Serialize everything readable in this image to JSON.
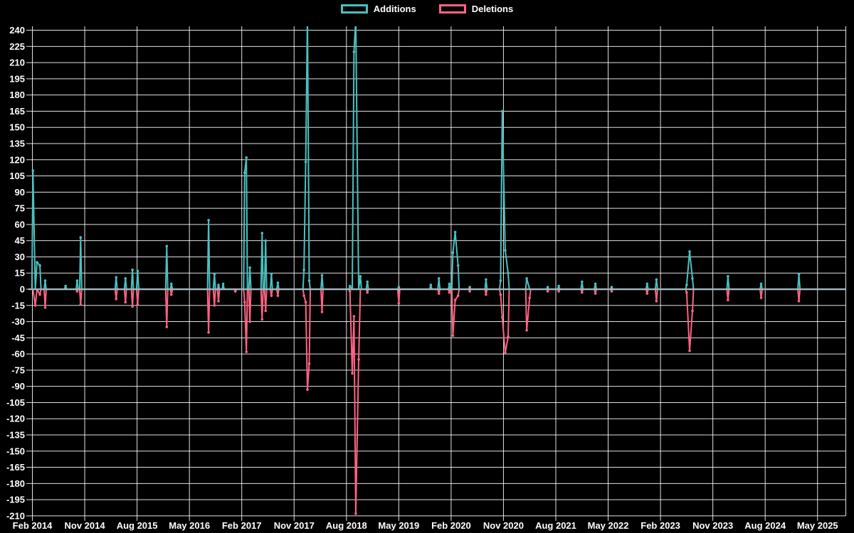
{
  "chart_data": {
    "type": "line",
    "title": "",
    "background": "#000000",
    "grid": true,
    "gridline_color": "#ffffff",
    "zero_line_color": "#9DB9C2",
    "legend_position": "top",
    "series": [
      {
        "name": "Additions",
        "color": "#4BC0C0",
        "key": "a"
      },
      {
        "name": "Deletions",
        "color": "#FF6384",
        "key": "d"
      }
    ],
    "x_axis": {
      "start_month": "2014-02",
      "tick_interval_months": 9,
      "tick_labels": [
        "Feb 2014",
        "Nov 2014",
        "Aug 2015",
        "May 2016",
        "Feb 2017",
        "Nov 2017",
        "Aug 2018",
        "May 2019",
        "Feb 2020",
        "Nov 2020",
        "Aug 2021",
        "May 2022",
        "Feb 2023",
        "Nov 2023",
        "Aug 2024",
        "May 2025"
      ]
    },
    "y_axis": {
      "min": -210,
      "max": 240,
      "step": 15,
      "tick_labels": [
        240,
        225,
        210,
        195,
        180,
        165,
        150,
        135,
        120,
        105,
        90,
        75,
        60,
        45,
        30,
        15,
        0,
        -15,
        -30,
        -45,
        -60,
        -75,
        -90,
        -105,
        -120,
        -135,
        -150,
        -165,
        -180,
        -195,
        -210
      ]
    },
    "points_note": "t = months since Feb 2014; a = additions (clipped at chart top for tallest spikes); d = deletions",
    "points": [
      {
        "t": 0.1,
        "a": 110,
        "d": 0
      },
      {
        "t": 0.5,
        "a": 0,
        "d": -15
      },
      {
        "t": 0.8,
        "a": 25,
        "d": 0
      },
      {
        "t": 1.3,
        "a": 22,
        "d": -5
      },
      {
        "t": 2.2,
        "a": 8,
        "d": -17
      },
      {
        "t": 5.7,
        "a": 3,
        "d": 0
      },
      {
        "t": 7.7,
        "a": 8,
        "d": -2
      },
      {
        "t": 8.3,
        "a": 48,
        "d": -14
      },
      {
        "t": 14.4,
        "a": 11,
        "d": -9
      },
      {
        "t": 16.0,
        "a": 10,
        "d": -12
      },
      {
        "t": 17.2,
        "a": 18,
        "d": -16
      },
      {
        "t": 18.1,
        "a": 17,
        "d": -14
      },
      {
        "t": 23.1,
        "a": 40,
        "d": -35
      },
      {
        "t": 23.9,
        "a": 5,
        "d": -5
      },
      {
        "t": 30.3,
        "a": 64,
        "d": -40
      },
      {
        "t": 31.3,
        "a": 14,
        "d": -15
      },
      {
        "t": 32.0,
        "a": 4,
        "d": -11
      },
      {
        "t": 32.8,
        "a": 5,
        "d": 0
      },
      {
        "t": 34.9,
        "a": 0,
        "d": -2
      },
      {
        "t": 36.5,
        "a": 108,
        "d": -12
      },
      {
        "t": 36.8,
        "a": 122,
        "d": -58
      },
      {
        "t": 37.4,
        "a": 20,
        "d": -30
      },
      {
        "t": 39.5,
        "a": 52,
        "d": -28
      },
      {
        "t": 40.1,
        "a": 45,
        "d": -20
      },
      {
        "t": 41.1,
        "a": 14,
        "d": -6
      },
      {
        "t": 42.2,
        "a": 6,
        "d": -6
      },
      {
        "t": 46.7,
        "a": 18,
        "d": -6
      },
      {
        "t": 47.0,
        "a": 118,
        "d": -12
      },
      {
        "t": 47.3,
        "a": 255,
        "d": -93
      },
      {
        "t": 47.6,
        "a": 8,
        "d": -69
      },
      {
        "t": 49.8,
        "a": 13,
        "d": -21
      },
      {
        "t": 54.6,
        "a": 3,
        "d": -2
      },
      {
        "t": 55.0,
        "a": 0,
        "d": -78
      },
      {
        "t": 55.3,
        "a": 220,
        "d": -25
      },
      {
        "t": 55.6,
        "a": 250,
        "d": -208
      },
      {
        "t": 56.1,
        "a": 0,
        "d": -65
      },
      {
        "t": 56.4,
        "a": 12,
        "d": 0
      },
      {
        "t": 57.6,
        "a": 7,
        "d": -3
      },
      {
        "t": 63.0,
        "a": 2,
        "d": -13
      },
      {
        "t": 68.5,
        "a": 4,
        "d": 0
      },
      {
        "t": 69.9,
        "a": 10,
        "d": -4
      },
      {
        "t": 71.7,
        "a": 5,
        "d": -3
      },
      {
        "t": 72.3,
        "a": 34,
        "d": -43
      },
      {
        "t": 72.7,
        "a": 53,
        "d": -10
      },
      {
        "t": 73.2,
        "a": 22,
        "d": -6
      },
      {
        "t": 75.2,
        "a": 2,
        "d": -2
      },
      {
        "t": 78.0,
        "a": 9,
        "d": -5
      },
      {
        "t": 80.5,
        "a": 8,
        "d": -5
      },
      {
        "t": 80.8,
        "a": 165,
        "d": -26
      },
      {
        "t": 81.3,
        "a": 36,
        "d": -59
      },
      {
        "t": 81.8,
        "a": 15,
        "d": -44
      },
      {
        "t": 85.0,
        "a": 10,
        "d": -38
      },
      {
        "t": 85.5,
        "a": 0,
        "d": -8
      },
      {
        "t": 88.6,
        "a": 2,
        "d": -2
      },
      {
        "t": 90.5,
        "a": 3,
        "d": -2
      },
      {
        "t": 94.5,
        "a": 7,
        "d": -3
      },
      {
        "t": 96.8,
        "a": 5,
        "d": -4
      },
      {
        "t": 99.6,
        "a": 2,
        "d": -2
      },
      {
        "t": 105.7,
        "a": 5,
        "d": -4
      },
      {
        "t": 107.3,
        "a": 9,
        "d": -11
      },
      {
        "t": 112.5,
        "a": 4,
        "d": -3
      },
      {
        "t": 113.0,
        "a": 35,
        "d": -57
      },
      {
        "t": 113.5,
        "a": 10,
        "d": -20
      },
      {
        "t": 119.6,
        "a": 12,
        "d": -10
      },
      {
        "t": 125.3,
        "a": 5,
        "d": -8
      },
      {
        "t": 131.8,
        "a": 14,
        "d": -11
      }
    ]
  }
}
